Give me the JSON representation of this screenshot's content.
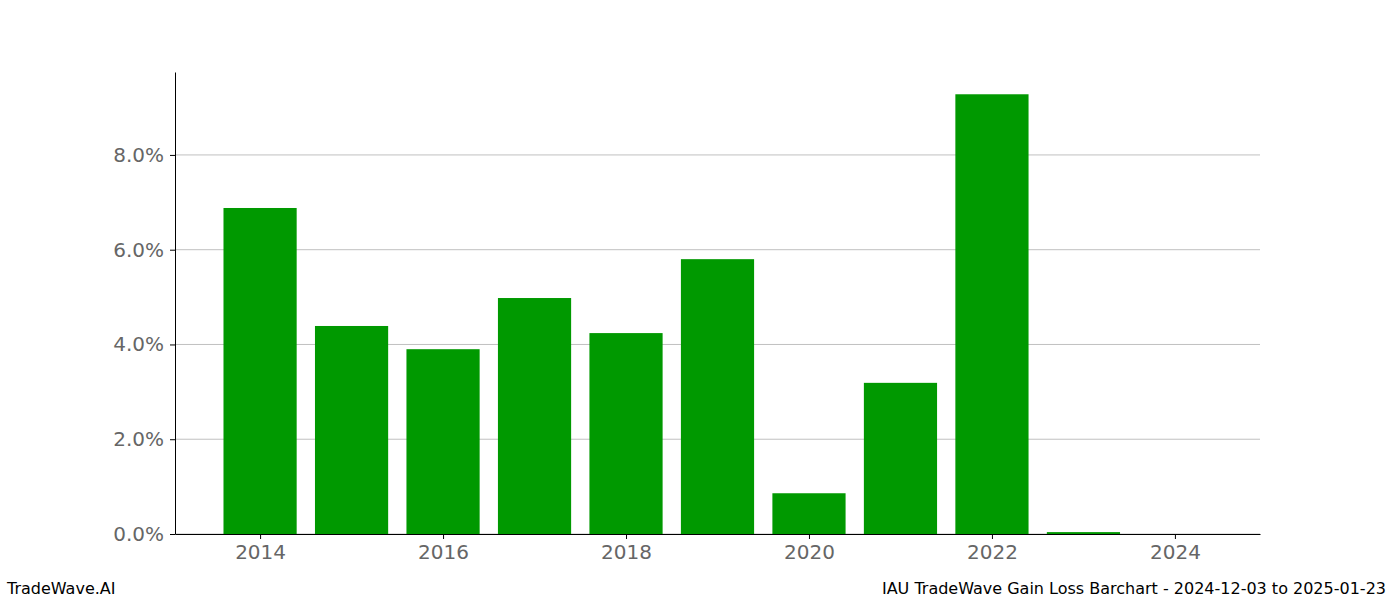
{
  "chart_data": {
    "type": "bar",
    "title": "IAU TradeWave Gain Loss Barchart - 2024-12-03 to 2025-01-23",
    "annotations": [
      "TradeWave.AI"
    ],
    "x": [
      2014,
      2015,
      2016,
      2017,
      2018,
      2019,
      2020,
      2021,
      2022,
      2023,
      2024
    ],
    "values": [
      6.88,
      4.39,
      3.9,
      4.98,
      4.24,
      5.8,
      0.86,
      3.19,
      9.28,
      0.04,
      0
    ],
    "color": "#009900",
    "xlim": [
      2013.07,
      2024.93
    ],
    "xticks": [
      2014,
      2016,
      2018,
      2020,
      2022,
      2024
    ],
    "ylim": [
      0,
      9.75
    ],
    "yticks": [
      {
        "value": 0,
        "label": "0.0%"
      },
      {
        "value": 2,
        "label": "2.0%"
      },
      {
        "value": 4,
        "label": "4.0%"
      },
      {
        "value": 6,
        "label": "6.0%"
      },
      {
        "value": 8,
        "label": "8.0%"
      }
    ],
    "grid": true
  }
}
